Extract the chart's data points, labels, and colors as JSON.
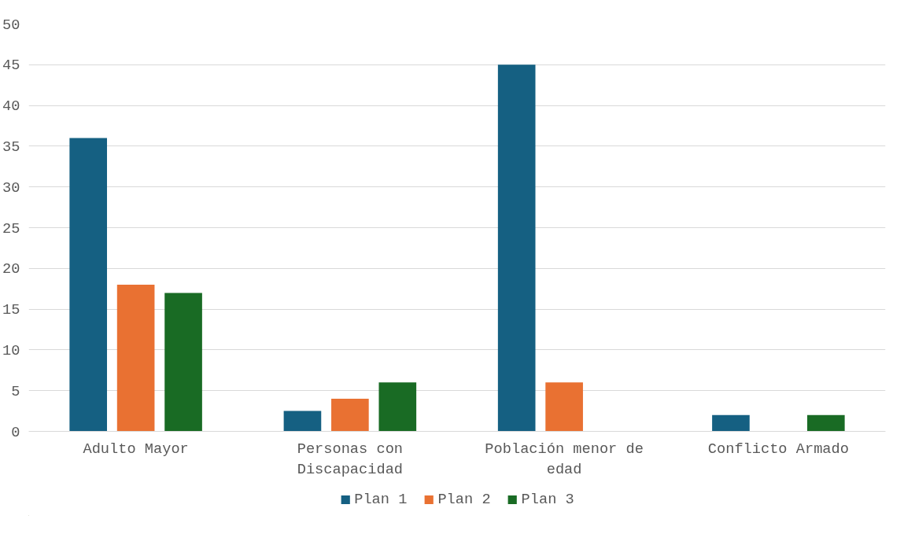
{
  "chart_data": {
    "type": "bar",
    "categories": [
      "Adulto Mayor",
      "Personas con Discapacidad",
      "Población menor de edad",
      "Conflicto Armado"
    ],
    "series": [
      {
        "name": "Plan 1",
        "color": "#156082",
        "values": [
          36,
          2.5,
          45,
          2
        ]
      },
      {
        "name": "Plan 2",
        "color": "#e97132",
        "values": [
          18,
          4,
          6,
          null
        ]
      },
      {
        "name": "Plan 3",
        "color": "#196b24",
        "values": [
          17,
          6,
          null,
          2
        ]
      }
    ],
    "ylim": [
      0,
      50
    ],
    "yticks": [
      0,
      5,
      10,
      15,
      20,
      25,
      30,
      35,
      40,
      45,
      50
    ],
    "grid": "y",
    "legend": "bottom"
  }
}
